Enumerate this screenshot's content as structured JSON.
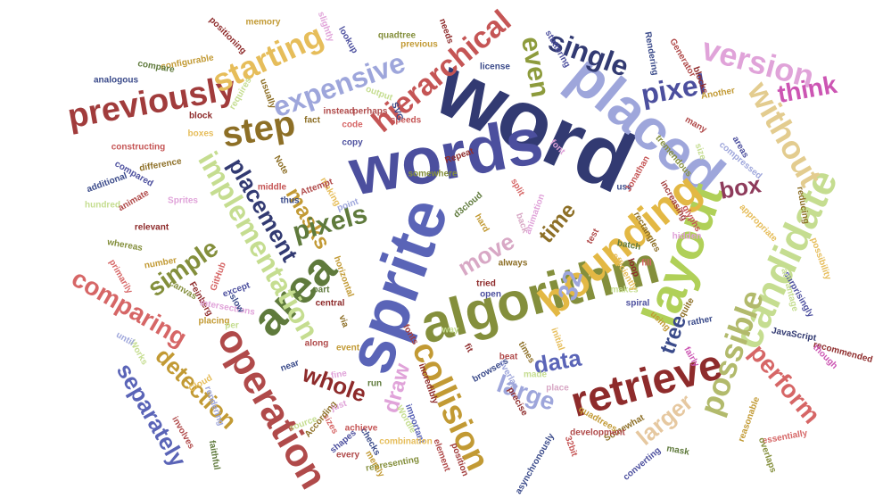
{
  "words": [
    {
      "text": "word",
      "color": "#323a72"
    },
    {
      "text": "words",
      "color": "#4c4f9e"
    },
    {
      "text": "sprite",
      "color": "#5a64b7"
    },
    {
      "text": "placed",
      "color": "#9ea6db"
    },
    {
      "text": "algorithm",
      "color": "#848f3c"
    },
    {
      "text": "layout",
      "color": "#b0d058"
    },
    {
      "text": "candidate",
      "color": "#c5dd90"
    },
    {
      "text": "area",
      "color": "#5f7a3c"
    },
    {
      "text": "bounding",
      "color": "#e3b844"
    },
    {
      "text": "retrieve",
      "color": "#8e2b2b"
    },
    {
      "text": "operation",
      "color": "#b04a4a"
    },
    {
      "text": "collision",
      "color": "#c29a34"
    },
    {
      "text": "hierarchical",
      "color": "#c55555"
    },
    {
      "text": "implementation",
      "color": "#c5dd90"
    },
    {
      "text": "without",
      "color": "#e3cc8f"
    },
    {
      "text": "version",
      "color": "#e0a3d9"
    },
    {
      "text": "possible",
      "color": "#b2ba6c"
    },
    {
      "text": "step",
      "color": "#8d6f26"
    },
    {
      "text": "previously",
      "color": "#a13c3c"
    },
    {
      "text": "starting",
      "color": "#e6bd5a"
    },
    {
      "text": "expensive",
      "color": "#9ea6db"
    },
    {
      "text": "single",
      "color": "#323a72"
    },
    {
      "text": "pixel",
      "color": "#4c4f9e"
    },
    {
      "text": "think",
      "color": "#cc55b3"
    },
    {
      "text": "placement",
      "color": "#323a72"
    },
    {
      "text": "masks",
      "color": "#c29a34"
    },
    {
      "text": "pixels",
      "color": "#5f7a3c"
    },
    {
      "text": "simple",
      "color": "#848f3c"
    },
    {
      "text": "comparing",
      "color": "#d66666"
    },
    {
      "text": "separately",
      "color": "#5a64b7"
    },
    {
      "text": "detection",
      "color": "#c29a34"
    },
    {
      "text": "whole",
      "color": "#8e2b2b"
    },
    {
      "text": "draw",
      "color": "#e0a3d9"
    },
    {
      "text": "move",
      "color": "#d8a8c5"
    },
    {
      "text": "time",
      "color": "#8d6f26"
    },
    {
      "text": "32",
      "color": "#9ea6db"
    },
    {
      "text": "large",
      "color": "#9ea6db"
    },
    {
      "text": "larger",
      "color": "#e6c8a0"
    },
    {
      "text": "data",
      "color": "#5a64b7"
    },
    {
      "text": "perform",
      "color": "#d66666"
    },
    {
      "text": "box",
      "color": "#8e3b5b"
    },
    {
      "text": "tree",
      "color": "#3a4a8a"
    },
    {
      "text": "even",
      "color": "#8d9b3c"
    },
    {
      "text": "Generator",
      "color": "#b04a4a"
    },
    {
      "text": "blocks",
      "color": "#8e2b2b"
    },
    {
      "text": "Another",
      "color": "#c29a34"
    },
    {
      "text": "Rendering",
      "color": "#3a4a8a"
    },
    {
      "text": "stuttering",
      "color": "#4c4f9e"
    },
    {
      "text": "size",
      "color": "#c5dd90"
    },
    {
      "text": "many",
      "color": "#b04a4a"
    },
    {
      "text": "tremendous",
      "color": "#848f3c"
    },
    {
      "text": "increasing",
      "color": "#a13c3c"
    },
    {
      "text": "compressed",
      "color": "#9ea6db"
    },
    {
      "text": "reducing",
      "color": "#8d6f26"
    },
    {
      "text": "surprisingly",
      "color": "#4c4f9e"
    },
    {
      "text": "possibility",
      "color": "#e6bd5a"
    },
    {
      "text": "advantage",
      "color": "#c5dd90"
    },
    {
      "text": "JavaScript",
      "color": "#323a72"
    },
    {
      "text": "recommended",
      "color": "#8e2b2b"
    },
    {
      "text": "though",
      "color": "#cc55b3"
    },
    {
      "text": "reasonable",
      "color": "#c29a34"
    },
    {
      "text": "essentially",
      "color": "#d66666"
    },
    {
      "text": "overlaps",
      "color": "#848f3c"
    },
    {
      "text": "mask",
      "color": "#5f7a3c"
    },
    {
      "text": "converting",
      "color": "#4c4f9e"
    },
    {
      "text": "Somewhat",
      "color": "#8d6f26"
    },
    {
      "text": "32bit",
      "color": "#c55555"
    },
    {
      "text": "development",
      "color": "#b04a4a"
    },
    {
      "text": "asynchronously",
      "color": "#3a4a8a"
    },
    {
      "text": "quadtrees",
      "color": "#c29a34"
    },
    {
      "text": "initial",
      "color": "#e6bd5a"
    },
    {
      "text": "place",
      "color": "#d8a8c5"
    },
    {
      "text": "precise",
      "color": "#8e2b2b"
    },
    {
      "text": "made",
      "color": "#c5dd90"
    },
    {
      "text": "browsers",
      "color": "#3a4a8a"
    },
    {
      "text": "open",
      "color": "#4c4f9e"
    },
    {
      "text": "tried",
      "color": "#8e2b2b"
    },
    {
      "text": "d3cloud",
      "color": "#5f7a3c"
    },
    {
      "text": "hard",
      "color": "#c29a34"
    },
    {
      "text": "animation",
      "color": "#e0a3d9"
    },
    {
      "text": "back",
      "color": "#d8a8c5"
    },
    {
      "text": "always",
      "color": "#8d6f26"
    },
    {
      "text": "overlap",
      "color": "#9ea6db"
    },
    {
      "text": "Wordle",
      "color": "#c5dd90"
    },
    {
      "text": "element",
      "color": "#b04a4a"
    },
    {
      "text": "position",
      "color": "#a13c3c"
    },
    {
      "text": "incredibly",
      "color": "#8e2b2b"
    },
    {
      "text": "important",
      "color": "#5a64b7"
    },
    {
      "text": "combination",
      "color": "#e6bd5a"
    },
    {
      "text": "representing",
      "color": "#848f3c"
    },
    {
      "text": "merely",
      "color": "#c29a34"
    },
    {
      "text": "checks",
      "color": "#3a4a8a"
    },
    {
      "text": "every",
      "color": "#b04a4a"
    },
    {
      "text": "shapes",
      "color": "#4c4f9e"
    },
    {
      "text": "achieve",
      "color": "#c55555"
    },
    {
      "text": "sizes",
      "color": "#d66666"
    },
    {
      "text": "According",
      "color": "#8d6f26"
    },
    {
      "text": "source",
      "color": "#c5dd90"
    },
    {
      "text": "fine",
      "color": "#e0a3d9"
    },
    {
      "text": "Cloud",
      "color": "#e6bd5a"
    },
    {
      "text": "rendering",
      "color": "#9ea6db"
    },
    {
      "text": "involves",
      "color": "#b04a4a"
    },
    {
      "text": "faithful",
      "color": "#5f7a3c"
    },
    {
      "text": "Works",
      "color": "#c5dd90"
    },
    {
      "text": "until",
      "color": "#9ea6db"
    },
    {
      "text": "using",
      "color": "#c29a34"
    },
    {
      "text": "rather",
      "color": "#3a4a8a"
    },
    {
      "text": "quite",
      "color": "#8d6f26"
    },
    {
      "text": "fairly",
      "color": "#cc55b3"
    },
    {
      "text": "fonts",
      "color": "#a13c3c"
    },
    {
      "text": "spiral",
      "color": "#4c4f9e"
    },
    {
      "text": "makes",
      "color": "#c5dd90"
    },
    {
      "text": "efficiently",
      "color": "#e6bd5a"
    },
    {
      "text": "loop",
      "color": "#8e2b2b"
    },
    {
      "text": "fill",
      "color": "#d66666"
    },
    {
      "text": "test",
      "color": "#b04a4a"
    },
    {
      "text": "batch",
      "color": "#5f7a3c"
    },
    {
      "text": "rectangles",
      "color": "#8d6f26"
    },
    {
      "text": "glyphs",
      "color": "#c55555"
    },
    {
      "text": "hidden",
      "color": "#e0a3d9"
    },
    {
      "text": "Feinberg",
      "color": "#8e2b2b"
    },
    {
      "text": "intersections",
      "color": "#e0a3d9"
    },
    {
      "text": "placing",
      "color": "#c29a34"
    },
    {
      "text": "slow",
      "color": "#3a4a8a"
    },
    {
      "text": "canvas",
      "color": "#848f3c"
    },
    {
      "text": "except",
      "color": "#4c4f9e"
    },
    {
      "text": "GitHub",
      "color": "#d66666"
    },
    {
      "text": "per",
      "color": "#c5dd90"
    },
    {
      "text": "central",
      "color": "#8e2b2b"
    },
    {
      "text": "part",
      "color": "#5f7a3c"
    },
    {
      "text": "horizontal",
      "color": "#c29a34"
    },
    {
      "text": "point",
      "color": "#9ea6db"
    },
    {
      "text": "making",
      "color": "#e6bd5a"
    },
    {
      "text": "thus",
      "color": "#3a4a8a"
    },
    {
      "text": "Attempt",
      "color": "#b04a4a"
    },
    {
      "text": "Note",
      "color": "#8d6f26"
    },
    {
      "text": "middle",
      "color": "#c55555"
    },
    {
      "text": "Sprites",
      "color": "#e0a3d9"
    },
    {
      "text": "relevant",
      "color": "#8e2b2b"
    },
    {
      "text": "whereas",
      "color": "#848f3c"
    },
    {
      "text": "number",
      "color": "#c29a34"
    },
    {
      "text": "primarily",
      "color": "#d66666"
    },
    {
      "text": "additional",
      "color": "#3a4a8a"
    },
    {
      "text": "hundred",
      "color": "#c5dd90"
    },
    {
      "text": "animate",
      "color": "#b04a4a"
    },
    {
      "text": "difference",
      "color": "#8d6f26"
    },
    {
      "text": "compared",
      "color": "#4c4f9e"
    },
    {
      "text": "constructing",
      "color": "#c55555"
    },
    {
      "text": "boxes",
      "color": "#e6bd5a"
    },
    {
      "text": "block",
      "color": "#8e2b2b"
    },
    {
      "text": "configurable",
      "color": "#c29a34"
    },
    {
      "text": "compare",
      "color": "#5f7a3c"
    },
    {
      "text": "analogous",
      "color": "#3a4a8a"
    },
    {
      "text": "instead",
      "color": "#b04a4a"
    },
    {
      "text": "usually",
      "color": "#8d6f26"
    },
    {
      "text": "requires",
      "color": "#c5dd90"
    },
    {
      "text": "positioning",
      "color": "#8e2b2b"
    },
    {
      "text": "memory",
      "color": "#c29a34"
    },
    {
      "text": "lookup",
      "color": "#4c4f9e"
    },
    {
      "text": "slightly",
      "color": "#e0a3d9"
    },
    {
      "text": "quadtree",
      "color": "#848f3c"
    },
    {
      "text": "previous",
      "color": "#c29a34"
    },
    {
      "text": "needs",
      "color": "#8e2b2b"
    },
    {
      "text": "license",
      "color": "#3a4a8a"
    },
    {
      "text": "perhaps",
      "color": "#b04a4a"
    },
    {
      "text": "output",
      "color": "#c5dd90"
    },
    {
      "text": "code",
      "color": "#d66666"
    },
    {
      "text": "copy",
      "color": "#4c4f9e"
    },
    {
      "text": "fact",
      "color": "#8d6f26"
    },
    {
      "text": "speeds",
      "color": "#c55555"
    },
    {
      "text": "SVG",
      "color": "#3a4a8a"
    },
    {
      "text": "Repeat",
      "color": "#8e2b2b"
    },
    {
      "text": "somewhere",
      "color": "#848f3c"
    },
    {
      "text": "font",
      "color": "#e0a3d9"
    },
    {
      "text": "use",
      "color": "#3a4a8a"
    },
    {
      "text": "Jonathan",
      "color": "#c55555"
    },
    {
      "text": "way",
      "color": "#c5dd90"
    },
    {
      "text": "beat",
      "color": "#b04a4a"
    },
    {
      "text": "times",
      "color": "#8d6f26"
    },
    {
      "text": "appropriate",
      "color": "#e6bd5a"
    },
    {
      "text": "areas",
      "color": "#4c4f9e"
    },
    {
      "text": "split",
      "color": "#d66666"
    },
    {
      "text": "fit",
      "color": "#8e2b2b"
    },
    {
      "text": "event",
      "color": "#c29a34"
    },
    {
      "text": "near",
      "color": "#3a4a8a"
    },
    {
      "text": "along",
      "color": "#b04a4a"
    },
    {
      "text": "just",
      "color": "#e0a3d9"
    },
    {
      "text": "run",
      "color": "#5f7a3c"
    },
    {
      "text": "via",
      "color": "#8d6f26"
    }
  ]
}
